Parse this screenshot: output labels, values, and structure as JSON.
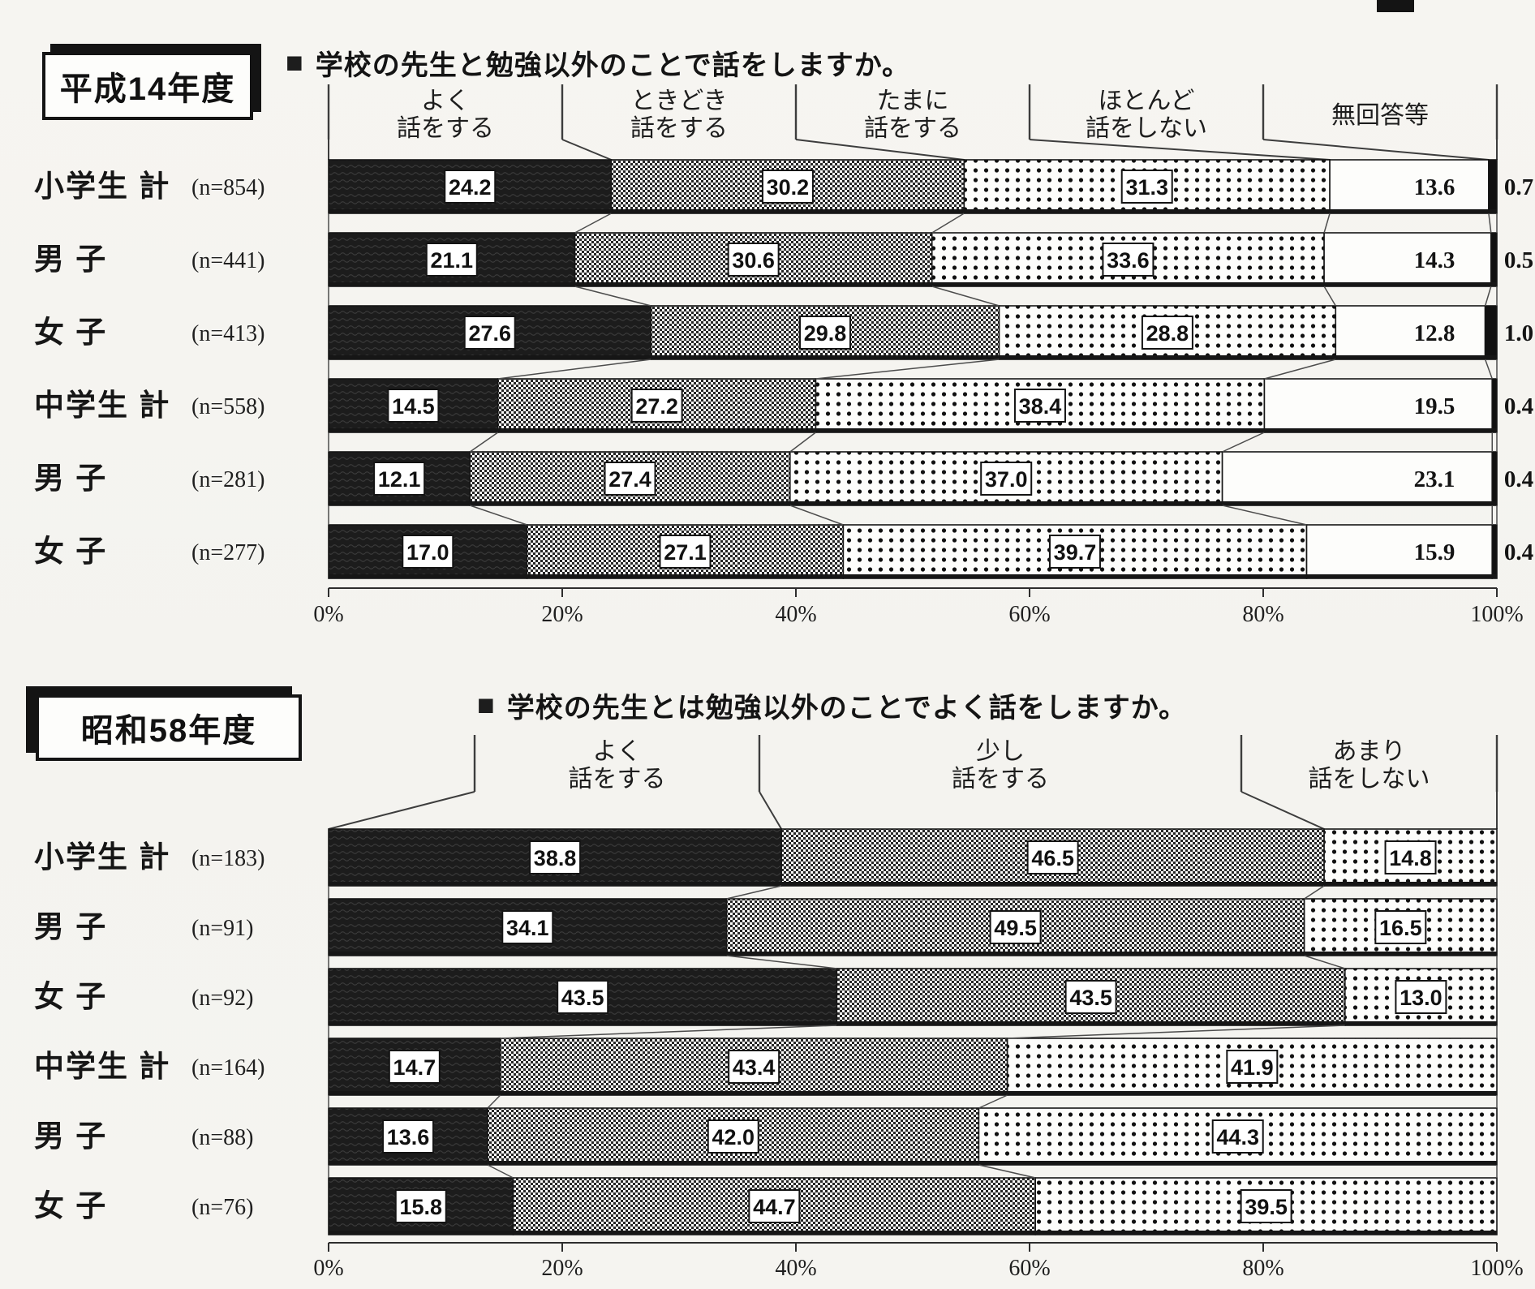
{
  "colors": {
    "paper": "#f5f4f0",
    "ink": "#1a1a1a",
    "bar_dark": "#1c1c1c",
    "bar_white": "#fdfdfb"
  },
  "chart_data": [
    {
      "type": "bar",
      "stacked": true,
      "orientation": "horizontal",
      "period_label": "平成14年度",
      "title_bullet": "■",
      "title": "学校の先生と勉強以外のことで話をしますか。",
      "legend": [
        [
          "よく",
          "話をする"
        ],
        [
          "ときどき",
          "話をする"
        ],
        [
          "たまに",
          "話をする"
        ],
        [
          "ほとんど",
          "話をしない"
        ],
        [
          "無回答等"
        ]
      ],
      "segment_patterns": [
        "solid-dark",
        "checker",
        "dots",
        "plain-white",
        "solid-black-sliver"
      ],
      "rows": [
        {
          "label": "小学生 計",
          "n_label": "(n=854)",
          "values": [
            24.2,
            30.2,
            31.3,
            13.6,
            0.7
          ]
        },
        {
          "label": "男 子",
          "n_label": "(n=441)",
          "values": [
            21.1,
            30.6,
            33.6,
            14.3,
            0.5
          ]
        },
        {
          "label": "女 子",
          "n_label": "(n=413)",
          "values": [
            27.6,
            29.8,
            28.8,
            12.8,
            1.0
          ]
        },
        {
          "label": "中学生 計",
          "n_label": "(n=558)",
          "values": [
            14.5,
            27.2,
            38.4,
            19.5,
            0.4
          ]
        },
        {
          "label": "男 子",
          "n_label": "(n=281)",
          "values": [
            12.1,
            27.4,
            37.0,
            23.1,
            0.4
          ]
        },
        {
          "label": "女 子",
          "n_label": "(n=277)",
          "values": [
            17.0,
            27.1,
            39.7,
            15.9,
            0.4
          ]
        }
      ],
      "x_ticks": [
        "0%",
        "20%",
        "40%",
        "60%",
        "80%",
        "100%"
      ],
      "xlim": [
        0,
        100
      ],
      "unit": "%"
    },
    {
      "type": "bar",
      "stacked": true,
      "orientation": "horizontal",
      "period_label": "昭和58年度",
      "title_bullet": "■",
      "title": "学校の先生とは勉強以外のことでよく話をしますか。",
      "legend": [
        [
          "よく",
          "話をする"
        ],
        [
          "少し",
          "話をする"
        ],
        [
          "あまり",
          "話をしない"
        ]
      ],
      "segment_patterns": [
        "solid-dark",
        "checker",
        "dots"
      ],
      "rows": [
        {
          "label": "小学生 計",
          "n_label": "(n=183)",
          "values": [
            38.8,
            46.5,
            14.8
          ]
        },
        {
          "label": "男 子",
          "n_label": "(n=91)",
          "values": [
            34.1,
            49.5,
            16.5
          ]
        },
        {
          "label": "女 子",
          "n_label": "(n=92)",
          "values": [
            43.5,
            43.5,
            13.0
          ]
        },
        {
          "label": "中学生 計",
          "n_label": "(n=164)",
          "values": [
            14.7,
            43.4,
            41.9
          ]
        },
        {
          "label": "男 子",
          "n_label": "(n=88)",
          "values": [
            13.6,
            42.0,
            44.3
          ]
        },
        {
          "label": "女 子",
          "n_label": "(n=76)",
          "values": [
            15.8,
            44.7,
            39.5
          ]
        }
      ],
      "x_ticks": [
        "0%",
        "20%",
        "40%",
        "60%",
        "80%",
        "100%"
      ],
      "xlim": [
        0,
        100
      ],
      "unit": "%"
    }
  ]
}
